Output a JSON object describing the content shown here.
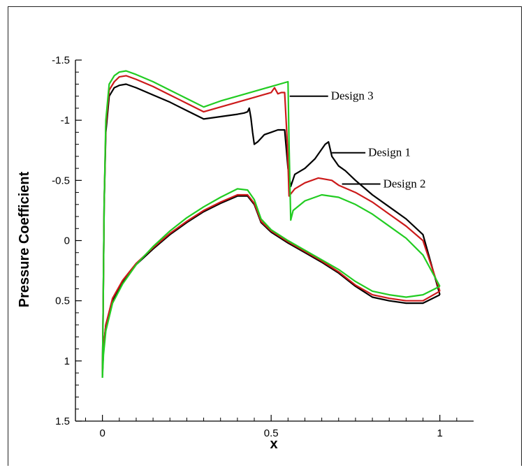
{
  "chart_data": {
    "type": "line",
    "xlabel": "x",
    "ylabel": "Pressure Coefficient",
    "xlim": [
      -0.08,
      1.1
    ],
    "ylim": [
      1.5,
      -1.5
    ],
    "y_inverted": true,
    "xticks": [
      0,
      0.5,
      1
    ],
    "xtick_labels": [
      "0",
      "0.5",
      "1"
    ],
    "yticks": [
      -1.5,
      -1,
      -0.5,
      0,
      0.5,
      1,
      1.5
    ],
    "ytick_labels": [
      "-1.5",
      "-1",
      "-0.5",
      "0",
      "0.5",
      "1",
      "1.5"
    ],
    "grid": false,
    "series": [
      {
        "name": "Design 1",
        "color": "#000000",
        "upper": [
          [
            0,
            1.12
          ],
          [
            0.002,
            0.6
          ],
          [
            0.005,
            -0.3
          ],
          [
            0.01,
            -0.9
          ],
          [
            0.02,
            -1.2
          ],
          [
            0.035,
            -1.27
          ],
          [
            0.05,
            -1.29
          ],
          [
            0.07,
            -1.3
          ],
          [
            0.1,
            -1.27
          ],
          [
            0.15,
            -1.21
          ],
          [
            0.2,
            -1.15
          ],
          [
            0.25,
            -1.08
          ],
          [
            0.3,
            -1.01
          ],
          [
            0.35,
            -1.03
          ],
          [
            0.4,
            -1.05
          ],
          [
            0.42,
            -1.06
          ],
          [
            0.43,
            -1.07
          ],
          [
            0.435,
            -1.1
          ],
          [
            0.44,
            -1.02
          ],
          [
            0.445,
            -0.9
          ],
          [
            0.45,
            -0.8
          ],
          [
            0.46,
            -0.82
          ],
          [
            0.47,
            -0.85
          ],
          [
            0.48,
            -0.88
          ],
          [
            0.5,
            -0.9
          ],
          [
            0.52,
            -0.92
          ],
          [
            0.54,
            -0.92
          ],
          [
            0.55,
            -0.6
          ],
          [
            0.558,
            -0.45
          ],
          [
            0.57,
            -0.55
          ],
          [
            0.6,
            -0.6
          ],
          [
            0.63,
            -0.68
          ],
          [
            0.66,
            -0.8
          ],
          [
            0.67,
            -0.82
          ],
          [
            0.68,
            -0.7
          ],
          [
            0.7,
            -0.62
          ],
          [
            0.72,
            -0.58
          ],
          [
            0.75,
            -0.5
          ],
          [
            0.8,
            -0.38
          ],
          [
            0.85,
            -0.28
          ],
          [
            0.9,
            -0.18
          ],
          [
            0.95,
            -0.05
          ],
          [
            1.0,
            0.45
          ]
        ],
        "lower": [
          [
            0,
            1.12
          ],
          [
            0.003,
            0.9
          ],
          [
            0.01,
            0.7
          ],
          [
            0.03,
            0.5
          ],
          [
            0.06,
            0.35
          ],
          [
            0.1,
            0.2
          ],
          [
            0.15,
            0.07
          ],
          [
            0.2,
            -0.05
          ],
          [
            0.25,
            -0.15
          ],
          [
            0.3,
            -0.24
          ],
          [
            0.35,
            -0.31
          ],
          [
            0.4,
            -0.37
          ],
          [
            0.43,
            -0.37
          ],
          [
            0.45,
            -0.3
          ],
          [
            0.47,
            -0.15
          ],
          [
            0.5,
            -0.07
          ],
          [
            0.55,
            0.02
          ],
          [
            0.6,
            0.1
          ],
          [
            0.65,
            0.18
          ],
          [
            0.7,
            0.27
          ],
          [
            0.75,
            0.38
          ],
          [
            0.8,
            0.47
          ],
          [
            0.85,
            0.5
          ],
          [
            0.9,
            0.52
          ],
          [
            0.95,
            0.52
          ],
          [
            1.0,
            0.45
          ]
        ]
      },
      {
        "name": "Design 2",
        "color": "#cc1a1a",
        "upper": [
          [
            0,
            1.12
          ],
          [
            0.002,
            0.6
          ],
          [
            0.005,
            -0.3
          ],
          [
            0.01,
            -0.95
          ],
          [
            0.02,
            -1.25
          ],
          [
            0.035,
            -1.32
          ],
          [
            0.05,
            -1.36
          ],
          [
            0.07,
            -1.37
          ],
          [
            0.1,
            -1.34
          ],
          [
            0.15,
            -1.28
          ],
          [
            0.2,
            -1.21
          ],
          [
            0.25,
            -1.14
          ],
          [
            0.3,
            -1.07
          ],
          [
            0.35,
            -1.11
          ],
          [
            0.4,
            -1.15
          ],
          [
            0.45,
            -1.19
          ],
          [
            0.5,
            -1.23
          ],
          [
            0.51,
            -1.27
          ],
          [
            0.52,
            -1.22
          ],
          [
            0.53,
            -1.23
          ],
          [
            0.54,
            -1.23
          ],
          [
            0.548,
            -0.8
          ],
          [
            0.553,
            -0.37
          ],
          [
            0.57,
            -0.43
          ],
          [
            0.6,
            -0.48
          ],
          [
            0.64,
            -0.52
          ],
          [
            0.68,
            -0.5
          ],
          [
            0.7,
            -0.46
          ],
          [
            0.75,
            -0.4
          ],
          [
            0.8,
            -0.32
          ],
          [
            0.85,
            -0.22
          ],
          [
            0.9,
            -0.12
          ],
          [
            0.95,
            0.0
          ],
          [
            1.0,
            0.42
          ]
        ],
        "lower": [
          [
            0,
            1.12
          ],
          [
            0.003,
            0.9
          ],
          [
            0.01,
            0.7
          ],
          [
            0.03,
            0.48
          ],
          [
            0.06,
            0.33
          ],
          [
            0.1,
            0.19
          ],
          [
            0.15,
            0.06
          ],
          [
            0.2,
            -0.06
          ],
          [
            0.25,
            -0.16
          ],
          [
            0.3,
            -0.25
          ],
          [
            0.35,
            -0.32
          ],
          [
            0.4,
            -0.38
          ],
          [
            0.43,
            -0.38
          ],
          [
            0.45,
            -0.31
          ],
          [
            0.47,
            -0.16
          ],
          [
            0.5,
            -0.08
          ],
          [
            0.55,
            0.01
          ],
          [
            0.6,
            0.09
          ],
          [
            0.65,
            0.17
          ],
          [
            0.7,
            0.26
          ],
          [
            0.75,
            0.37
          ],
          [
            0.8,
            0.45
          ],
          [
            0.85,
            0.48
          ],
          [
            0.9,
            0.5
          ],
          [
            0.95,
            0.5
          ],
          [
            1.0,
            0.42
          ]
        ]
      },
      {
        "name": "Design 3",
        "color": "#22cc22",
        "upper": [
          [
            0,
            1.14
          ],
          [
            0.002,
            0.6
          ],
          [
            0.005,
            -0.3
          ],
          [
            0.01,
            -1.0
          ],
          [
            0.02,
            -1.3
          ],
          [
            0.035,
            -1.37
          ],
          [
            0.05,
            -1.4
          ],
          [
            0.07,
            -1.41
          ],
          [
            0.1,
            -1.38
          ],
          [
            0.15,
            -1.32
          ],
          [
            0.2,
            -1.25
          ],
          [
            0.25,
            -1.18
          ],
          [
            0.3,
            -1.11
          ],
          [
            0.35,
            -1.16
          ],
          [
            0.4,
            -1.2
          ],
          [
            0.45,
            -1.24
          ],
          [
            0.5,
            -1.28
          ],
          [
            0.55,
            -1.32
          ],
          [
            0.553,
            -0.8
          ],
          [
            0.558,
            -0.17
          ],
          [
            0.565,
            -0.25
          ],
          [
            0.6,
            -0.33
          ],
          [
            0.65,
            -0.38
          ],
          [
            0.7,
            -0.36
          ],
          [
            0.75,
            -0.3
          ],
          [
            0.8,
            -0.22
          ],
          [
            0.85,
            -0.12
          ],
          [
            0.9,
            -0.02
          ],
          [
            0.95,
            0.12
          ],
          [
            1.0,
            0.38
          ]
        ],
        "lower": [
          [
            0,
            1.14
          ],
          [
            0.003,
            0.95
          ],
          [
            0.01,
            0.75
          ],
          [
            0.03,
            0.52
          ],
          [
            0.06,
            0.36
          ],
          [
            0.1,
            0.2
          ],
          [
            0.15,
            0.05
          ],
          [
            0.2,
            -0.08
          ],
          [
            0.25,
            -0.19
          ],
          [
            0.3,
            -0.28
          ],
          [
            0.35,
            -0.36
          ],
          [
            0.4,
            -0.43
          ],
          [
            0.43,
            -0.42
          ],
          [
            0.45,
            -0.34
          ],
          [
            0.47,
            -0.18
          ],
          [
            0.5,
            -0.09
          ],
          [
            0.55,
            0.0
          ],
          [
            0.6,
            0.08
          ],
          [
            0.65,
            0.16
          ],
          [
            0.7,
            0.24
          ],
          [
            0.75,
            0.34
          ],
          [
            0.8,
            0.42
          ],
          [
            0.85,
            0.45
          ],
          [
            0.9,
            0.47
          ],
          [
            0.95,
            0.45
          ],
          [
            1.0,
            0.38
          ]
        ]
      }
    ],
    "annotations": [
      {
        "text": "Design 3",
        "series": "Design 3",
        "point": [
          0.555,
          -1.2
        ]
      },
      {
        "text": "Design 1",
        "series": "Design 1",
        "point": [
          0.68,
          -0.73
        ]
      },
      {
        "text": "Design 2",
        "series": "Design 2",
        "point": [
          0.71,
          -0.47
        ]
      }
    ]
  }
}
